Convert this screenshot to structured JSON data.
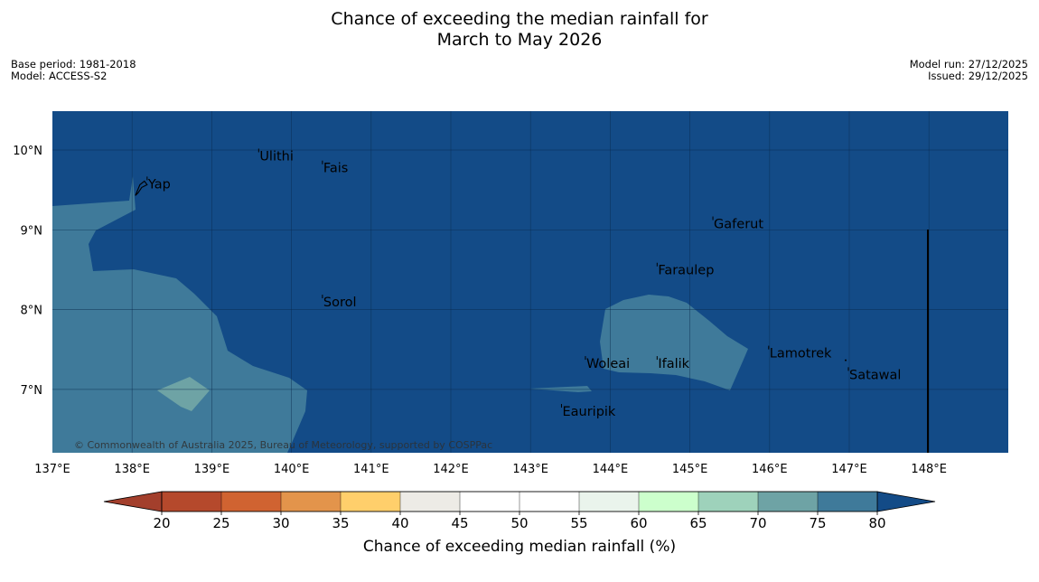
{
  "header": {
    "title_line1": "Chance of exceeding the median rainfall for",
    "title_line2": "March to May 2026",
    "base_period": "Base period: 1981-2018",
    "model": "Model: ACCESS-S2",
    "model_run": "Model run: 27/12/2025",
    "issued": "Issued: 29/12/2025"
  },
  "map": {
    "lat_labels": [
      "10°N",
      "9°N",
      "8°N",
      "7°N"
    ],
    "lon_labels": [
      "137°E",
      "138°E",
      "139°E",
      "140°E",
      "141°E",
      "142°E",
      "143°E",
      "144°E",
      "145°E",
      "146°E",
      "147°E",
      "148°E"
    ],
    "places": [
      {
        "name": "Yap",
        "lon": 138.2,
        "lat": 9.52
      },
      {
        "name": "Ulithi",
        "lon": 139.6,
        "lat": 9.87
      },
      {
        "name": "Fais",
        "lon": 140.4,
        "lat": 9.72
      },
      {
        "name": "Gaferut",
        "lon": 145.3,
        "lat": 9.02
      },
      {
        "name": "Faraulep",
        "lon": 144.6,
        "lat": 8.44
      },
      {
        "name": "Sorol",
        "lon": 140.4,
        "lat": 8.04
      },
      {
        "name": "Lamotrek",
        "lon": 146.0,
        "lat": 7.4
      },
      {
        "name": "Woleai",
        "lon": 143.7,
        "lat": 7.27
      },
      {
        "name": "Ifalik",
        "lon": 144.6,
        "lat": 7.27
      },
      {
        "name": "Satawal",
        "lon": 147.0,
        "lat": 7.13
      },
      {
        "name": "Eauripik",
        "lon": 143.4,
        "lat": 6.67
      }
    ],
    "copyright": "© Commonwealth of Australia 2025, Bureau of Meteorology, supported by COSPPac",
    "colors": {
      "ocean_high": "#134B87",
      "band_75_80": "#3F7A9A",
      "band_70_75": "#6EA3A5"
    }
  },
  "colorbar": {
    "label": "Chance of exceeding median rainfall (%)",
    "ticks": [
      "20",
      "25",
      "30",
      "35",
      "40",
      "45",
      "50",
      "55",
      "60",
      "65",
      "70",
      "75",
      "80"
    ],
    "colors": [
      "#B5492C",
      "#D06331",
      "#E3944B",
      "#FFCF6B",
      "#EDEBE6",
      "#FFFFFF",
      "#FFFFFF",
      "#EAF4EC",
      "#CCFFCC",
      "#9ED2BB",
      "#6EA3A5",
      "#3F7A9A"
    ],
    "under_color": "#A33F2C",
    "over_color": "#134B87"
  }
}
